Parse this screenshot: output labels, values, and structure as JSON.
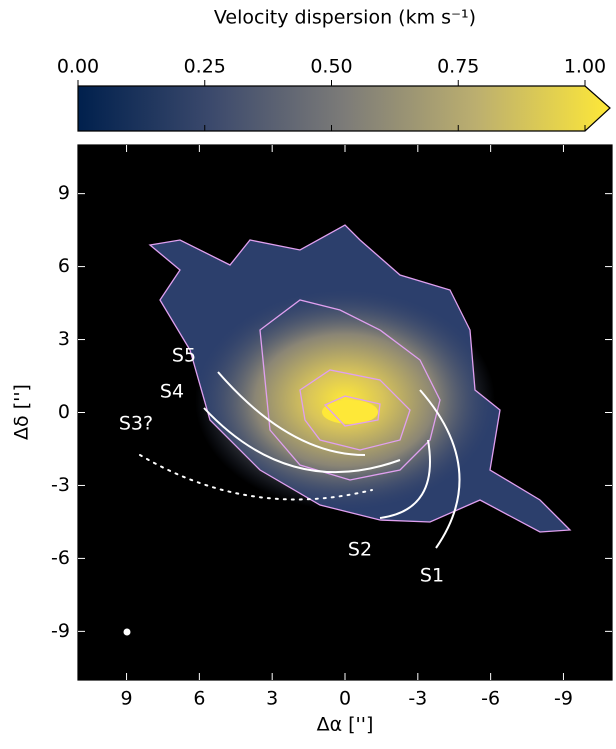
{
  "chart_data": {
    "type": "image",
    "colorbar": {
      "title": "Velocity dispersion (km s⁻¹)",
      "clim": [
        0,
        1
      ],
      "ticks": [
        {
          "value": 0,
          "label": "0.00"
        },
        {
          "value": 0.25,
          "label": "0.25"
        },
        {
          "value": 0.5,
          "label": "0.50"
        },
        {
          "value": 0.75,
          "label": "0.75"
        },
        {
          "value": 1,
          "label": "1.00"
        }
      ],
      "colormap": [
        "#00204d",
        "#3b496c",
        "#7c7b78",
        "#bcaf6f",
        "#fee838"
      ]
    },
    "xlabel": "Δα ['']",
    "ylabel": "Δδ ['']",
    "xlim": [
      11,
      -11
    ],
    "ylim": [
      -11,
      11
    ],
    "xticks": [
      9,
      6,
      3,
      0,
      -3,
      -6,
      -9
    ],
    "yticks": [
      9,
      6,
      3,
      0,
      -3,
      -6,
      -9
    ],
    "annotations": [
      "S5",
      "S4",
      "S3?",
      "S2",
      "S1"
    ],
    "contour_color": "#e0a0f0",
    "arm_color": "#ffffff"
  }
}
